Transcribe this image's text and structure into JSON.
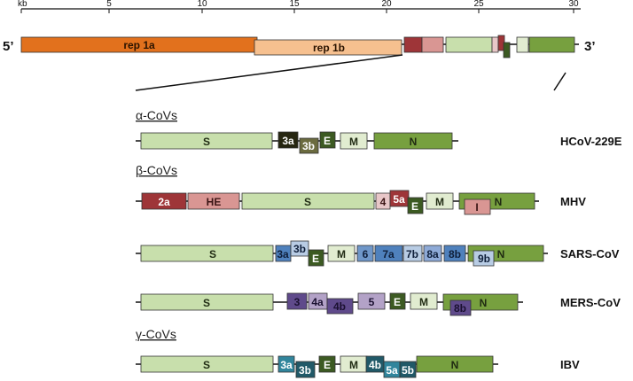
{
  "scale": {
    "unit_label": "kb",
    "ticks": [
      "5",
      "10",
      "15",
      "20",
      "25",
      "30"
    ]
  },
  "genome": {
    "five_prime": "5’",
    "three_prime": "3’",
    "rep1a": "rep 1a",
    "rep1b": "rep 1b"
  },
  "groups": {
    "alpha": "α-CoVs",
    "beta": "β-CoVs",
    "gamma": "γ-CoVs"
  },
  "viruses": {
    "hcov229e": {
      "name": "HCoV-229E",
      "genes": {
        "S": "S",
        "3a": "3a",
        "3b": "3b",
        "E": "E",
        "M": "M",
        "N": "N"
      }
    },
    "mhv": {
      "name": "MHV",
      "genes": {
        "2a": "2a",
        "HE": "HE",
        "S": "S",
        "4": "4",
        "5a": "5a",
        "E": "E",
        "M": "M",
        "I": "I",
        "N": "N"
      }
    },
    "sars": {
      "name": "SARS-CoV",
      "genes": {
        "S": "S",
        "3a": "3a",
        "3b": "3b",
        "E": "E",
        "M": "M",
        "6": "6",
        "7a": "7a",
        "7b": "7b",
        "8a": "8a",
        "8b": "8b",
        "9b": "9b",
        "N": "N"
      }
    },
    "mers": {
      "name": "MERS-CoV",
      "genes": {
        "S": "S",
        "3": "3",
        "4a": "4a",
        "4b": "4b",
        "5": "5",
        "E": "E",
        "M": "M",
        "8b": "8b",
        "N": "N"
      }
    },
    "ibv": {
      "name": "IBV",
      "genes": {
        "S": "S",
        "3a": "3a",
        "3b": "3b",
        "E": "E",
        "M": "M",
        "4b": "4b",
        "5a": "5a",
        "5b": "5b",
        "N": "N"
      }
    }
  },
  "colors": {
    "rep1a": "#e2711d",
    "rep1b": "#f6c08f",
    "spike": "#c8dfac",
    "nucleocapsid": "#77a03f",
    "envelope": "#3c5a22",
    "membrane": "#e1ecd0",
    "mhv_red": "#9e3538",
    "mhv_pink": "#d99693",
    "sars_blue": "#4f81bd",
    "sars_light": "#b8cce4",
    "mers_dark": "#5f4a8b",
    "mers_light": "#b3a2c7",
    "ibv_teal": "#31859c",
    "ibv_dark": "#215968"
  }
}
